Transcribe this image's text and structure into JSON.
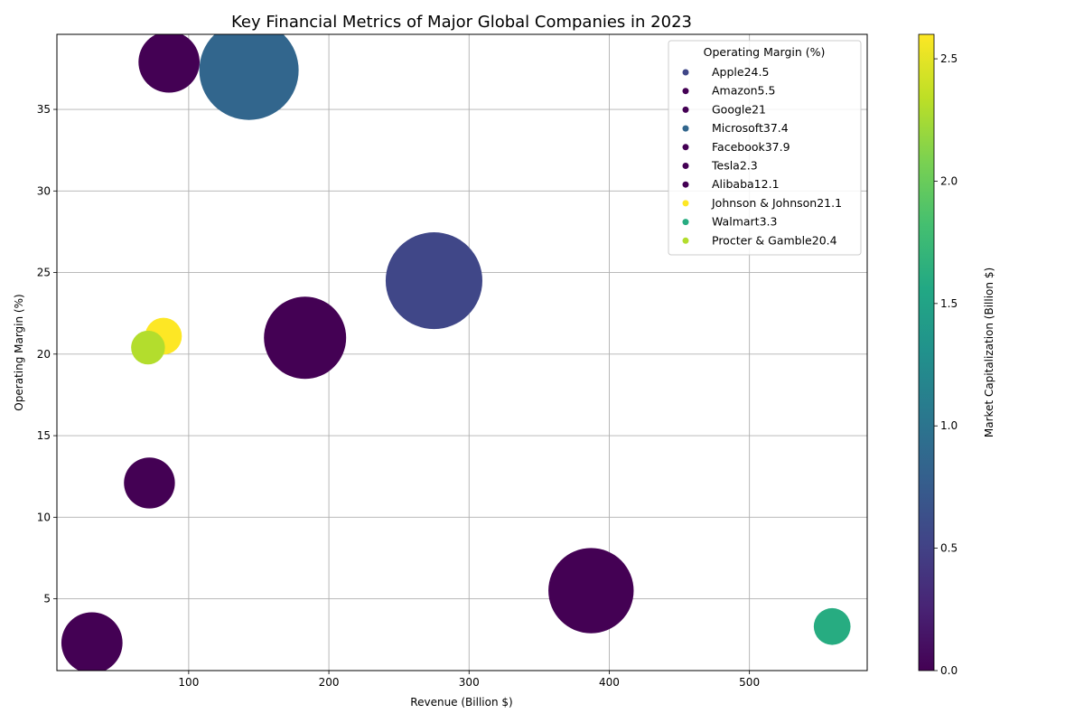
{
  "chart_data": {
    "type": "scatter",
    "title": "Key Financial Metrics of Major Global Companies in 2023",
    "xlabel": "Revenue (Billion $)",
    "ylabel": "Operating Margin (%)",
    "xlim": [
      6,
      584
    ],
    "ylim": [
      0.6,
      39.6
    ],
    "xticks": [
      "100",
      "200",
      "300",
      "400",
      "500"
    ],
    "yticks": [
      "5",
      "10",
      "15",
      "20",
      "25",
      "30",
      "35"
    ],
    "grid": true,
    "legend_title": "Operating Margin (%)",
    "legend_position": "top-right",
    "colorbar": {
      "label": "Market Capitalization (Billion $)",
      "range": [
        0,
        2.6
      ],
      "ticks": [
        "0.0",
        "0.5",
        "1.0",
        "1.5",
        "2.0",
        "2.5"
      ],
      "colormap": "viridis"
    },
    "points": [
      {
        "label": "Apple24.5",
        "revenue": 275,
        "margin": 24.5,
        "size": 9000,
        "color_value": 0.55
      },
      {
        "label": "Amazon5.5",
        "revenue": 387,
        "margin": 5.5,
        "size": 7000,
        "color_value": 0.0
      },
      {
        "label": "Google21",
        "revenue": 183,
        "margin": 21,
        "size": 6500,
        "color_value": 0.0
      },
      {
        "label": "Microsoft37.4",
        "revenue": 143,
        "margin": 37.4,
        "size": 9500,
        "color_value": 0.85
      },
      {
        "label": "Facebook37.9",
        "revenue": 86,
        "margin": 37.9,
        "size": 3600,
        "color_value": 0.0
      },
      {
        "label": "Tesla2.3",
        "revenue": 31,
        "margin": 2.3,
        "size": 3600,
        "color_value": 0.0
      },
      {
        "label": "Alibaba12.1",
        "revenue": 72,
        "margin": 12.1,
        "size": 2500,
        "color_value": 0.0
      },
      {
        "label": "Johnson & Johnson21.1",
        "revenue": 82,
        "margin": 21.1,
        "size": 1300,
        "color_value": 2.6
      },
      {
        "label": "Walmart3.3",
        "revenue": 559,
        "margin": 3.3,
        "size": 1300,
        "color_value": 1.6
      },
      {
        "label": "Procter & Gamble20.4",
        "revenue": 71,
        "margin": 20.4,
        "size": 1100,
        "color_value": 2.3
      }
    ]
  }
}
